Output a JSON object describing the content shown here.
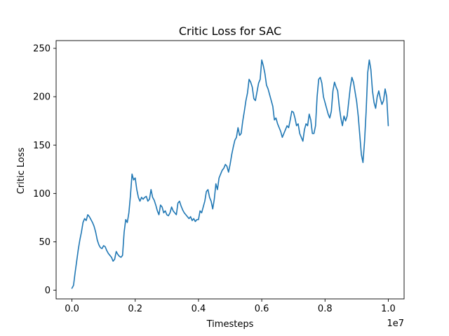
{
  "chart_data": {
    "type": "line",
    "title": "Critic Loss for SAC",
    "xlabel": "Timesteps",
    "ylabel": "Critic Loss",
    "x_offset_label": "1e7",
    "xlim": [
      -0.05,
      1.05
    ],
    "ylim": [
      -9,
      258
    ],
    "x_ticks": [
      {
        "value": 0.0,
        "label": "0.0"
      },
      {
        "value": 0.2,
        "label": "0.2"
      },
      {
        "value": 0.4,
        "label": "0.4"
      },
      {
        "value": 0.6,
        "label": "0.6"
      },
      {
        "value": 0.8,
        "label": "0.8"
      },
      {
        "value": 1.0,
        "label": "1.0"
      }
    ],
    "y_ticks": [
      {
        "value": 0,
        "label": "0"
      },
      {
        "value": 50,
        "label": "50"
      },
      {
        "value": 100,
        "label": "100"
      },
      {
        "value": 150,
        "label": "150"
      },
      {
        "value": 200,
        "label": "200"
      },
      {
        "value": 250,
        "label": "250"
      }
    ],
    "grid": false,
    "series": [
      {
        "color": "#1f77b4",
        "x": [
          0.0,
          0.005,
          0.01,
          0.015,
          0.02,
          0.025,
          0.03,
          0.035,
          0.04,
          0.045,
          0.05,
          0.055,
          0.06,
          0.065,
          0.07,
          0.075,
          0.08,
          0.085,
          0.09,
          0.095,
          0.1,
          0.105,
          0.11,
          0.115,
          0.12,
          0.125,
          0.13,
          0.135,
          0.14,
          0.145,
          0.15,
          0.155,
          0.16,
          0.165,
          0.17,
          0.175,
          0.18,
          0.185,
          0.19,
          0.195,
          0.2,
          0.205,
          0.21,
          0.215,
          0.22,
          0.225,
          0.23,
          0.235,
          0.24,
          0.245,
          0.25,
          0.255,
          0.26,
          0.265,
          0.27,
          0.275,
          0.28,
          0.285,
          0.29,
          0.295,
          0.3,
          0.305,
          0.31,
          0.315,
          0.32,
          0.325,
          0.33,
          0.335,
          0.34,
          0.345,
          0.35,
          0.355,
          0.36,
          0.365,
          0.37,
          0.375,
          0.38,
          0.385,
          0.39,
          0.395,
          0.4,
          0.405,
          0.41,
          0.415,
          0.42,
          0.425,
          0.43,
          0.435,
          0.44,
          0.445,
          0.45,
          0.455,
          0.46,
          0.465,
          0.47,
          0.475,
          0.48,
          0.485,
          0.49,
          0.495,
          0.5,
          0.505,
          0.51,
          0.515,
          0.52,
          0.525,
          0.53,
          0.535,
          0.54,
          0.545,
          0.55,
          0.555,
          0.56,
          0.565,
          0.57,
          0.575,
          0.58,
          0.585,
          0.59,
          0.595,
          0.6,
          0.605,
          0.61,
          0.615,
          0.62,
          0.625,
          0.63,
          0.635,
          0.64,
          0.645,
          0.65,
          0.655,
          0.66,
          0.665,
          0.67,
          0.675,
          0.68,
          0.685,
          0.69,
          0.695,
          0.7,
          0.705,
          0.71,
          0.715,
          0.72,
          0.725,
          0.73,
          0.735,
          0.74,
          0.745,
          0.75,
          0.755,
          0.76,
          0.765,
          0.77,
          0.775,
          0.78,
          0.785,
          0.79,
          0.795,
          0.8,
          0.805,
          0.81,
          0.815,
          0.82,
          0.825,
          0.83,
          0.835,
          0.84,
          0.845,
          0.85,
          0.855,
          0.86,
          0.865,
          0.87,
          0.875,
          0.88,
          0.885,
          0.89,
          0.895,
          0.9,
          0.905,
          0.91,
          0.915,
          0.92,
          0.925,
          0.93,
          0.935,
          0.94,
          0.945,
          0.95,
          0.955,
          0.96,
          0.965,
          0.97,
          0.975,
          0.98,
          0.985,
          0.99,
          0.995,
          1.0
        ],
        "y": [
          2,
          5,
          18,
          30,
          42,
          52,
          60,
          70,
          74,
          72,
          78,
          76,
          73,
          70,
          66,
          60,
          52,
          47,
          44,
          43,
          46,
          45,
          41,
          38,
          36,
          34,
          30,
          32,
          40,
          37,
          35,
          34,
          36,
          60,
          73,
          70,
          80,
          98,
          120,
          114,
          116,
          104,
          96,
          92,
          96,
          94,
          96,
          97,
          92,
          94,
          104,
          96,
          93,
          88,
          82,
          78,
          88,
          86,
          80,
          82,
          78,
          77,
          80,
          86,
          82,
          80,
          78,
          90,
          92,
          87,
          83,
          80,
          78,
          76,
          74,
          76,
          72,
          74,
          71,
          73,
          73,
          82,
          80,
          86,
          92,
          102,
          104,
          96,
          92,
          84,
          94,
          110,
          104,
          116,
          120,
          124,
          126,
          130,
          128,
          122,
          130,
          140,
          148,
          155,
          158,
          168,
          160,
          162,
          175,
          185,
          196,
          204,
          218,
          215,
          210,
          198,
          196,
          205,
          214,
          218,
          238,
          232,
          224,
          212,
          208,
          202,
          196,
          190,
          176,
          178,
          172,
          168,
          164,
          158,
          162,
          166,
          170,
          168,
          176,
          185,
          184,
          178,
          170,
          172,
          162,
          158,
          154,
          166,
          172,
          170,
          182,
          176,
          162,
          162,
          170,
          200,
          218,
          220,
          214,
          200,
          194,
          188,
          182,
          178,
          185,
          206,
          215,
          210,
          206,
          190,
          178,
          170,
          180,
          175,
          180,
          195,
          210,
          220,
          215,
          205,
          195,
          180,
          160,
          140,
          132,
          154,
          185,
          225,
          238,
          228,
          206,
          194,
          188,
          200,
          206,
          198,
          192,
          196,
          208,
          200,
          170
        ]
      }
    ]
  }
}
